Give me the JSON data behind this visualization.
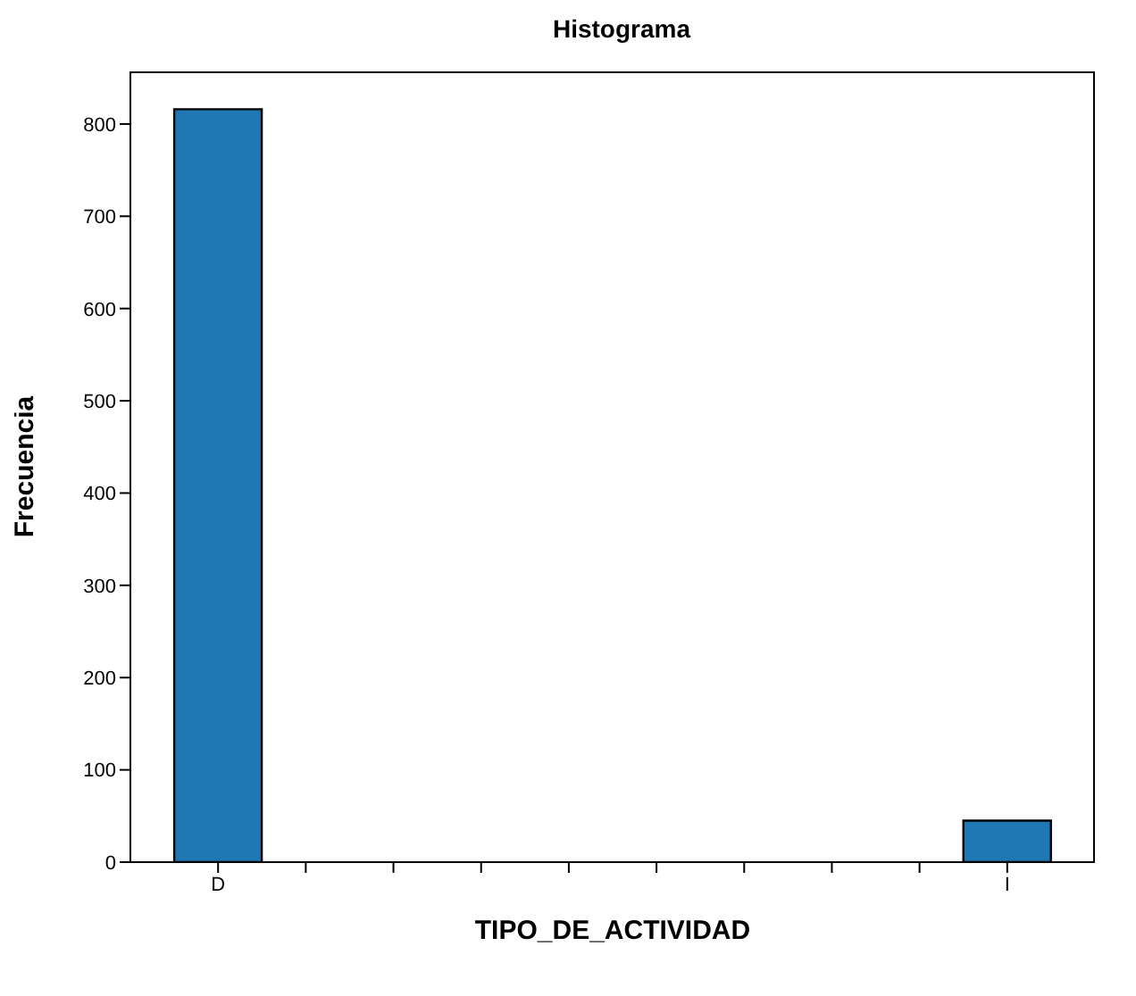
{
  "chart_data": {
    "type": "bar",
    "title": "Histograma",
    "xlabel": "TIPO_DE_ACTIVIDAD",
    "ylabel": "Frecuencia",
    "categories": [
      "D",
      null,
      null,
      null,
      null,
      null,
      null,
      null,
      null,
      "I"
    ],
    "values": [
      816,
      0,
      0,
      0,
      0,
      0,
      0,
      0,
      0,
      45
    ],
    "color": "#1f77b4",
    "ylim": [
      0,
      857
    ],
    "yticks": [
      0,
      100,
      200,
      300,
      400,
      500,
      600,
      700,
      800
    ]
  }
}
